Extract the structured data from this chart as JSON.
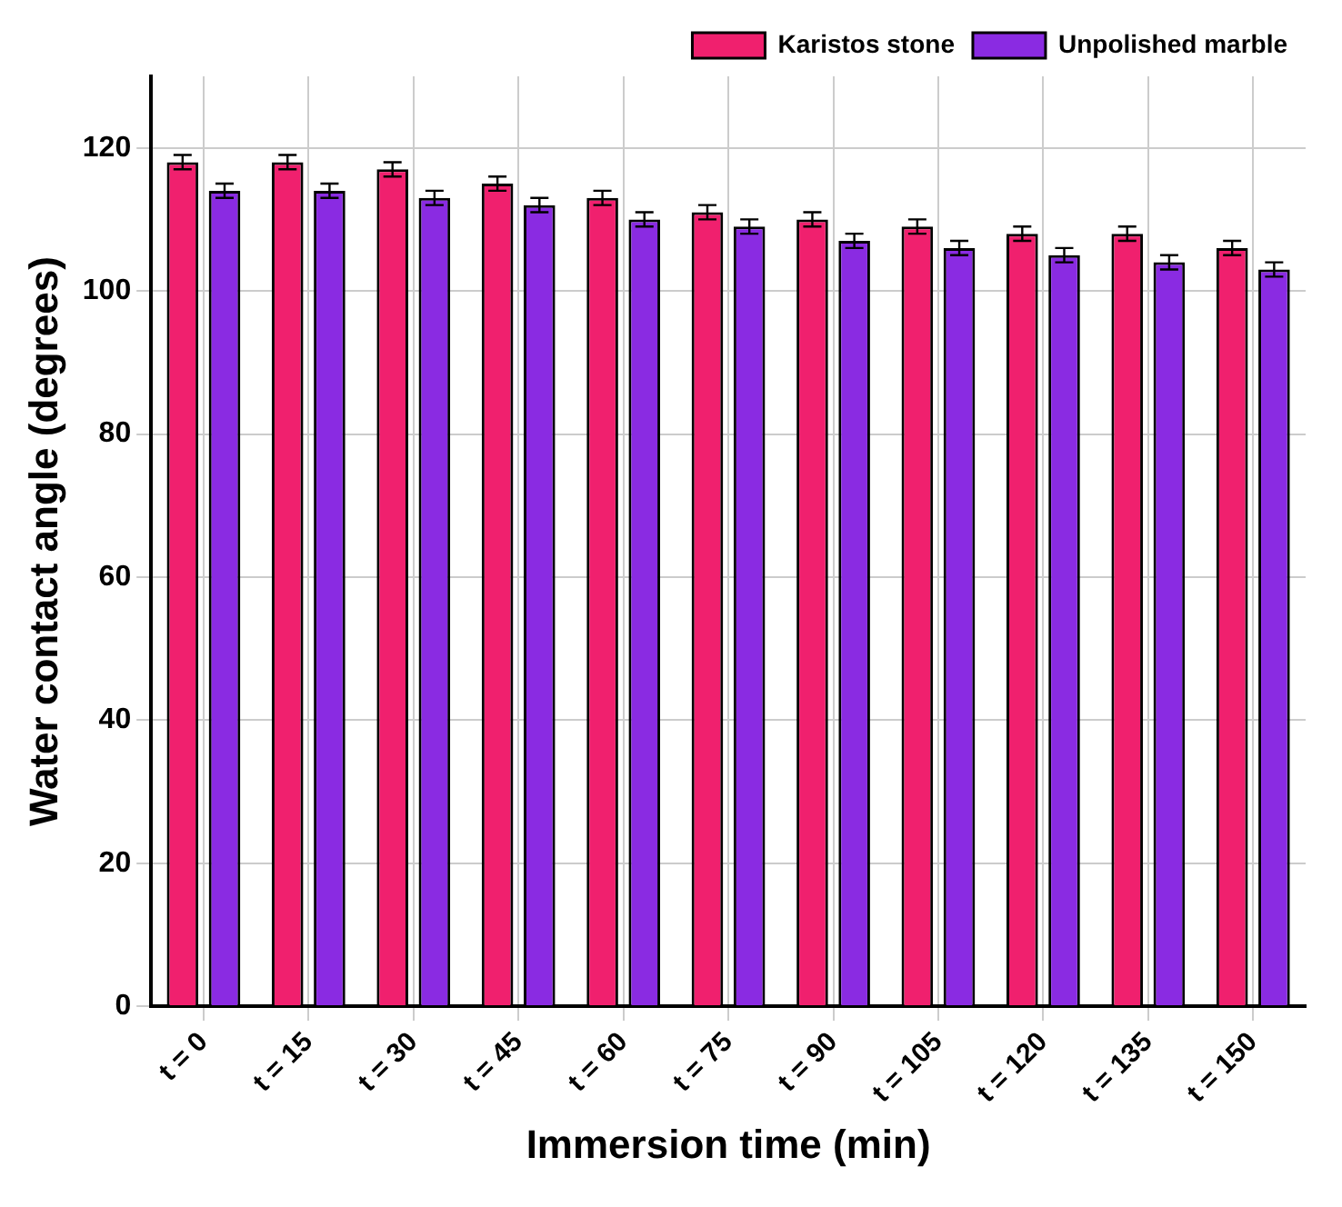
{
  "chart_data": {
    "type": "bar",
    "xlabel": "Immersion time (min)",
    "ylabel": "Water contact angle (degrees)",
    "categories": [
      "t = 0",
      "t = 15",
      "t = 30",
      "t = 45",
      "t = 60",
      "t = 75",
      "t = 90",
      "t = 105",
      "t = 120",
      "t = 135",
      "t = 150"
    ],
    "series": [
      {
        "name": "Karistos stone",
        "color": "#f0206e",
        "values": [
          118,
          118,
          117,
          115,
          113,
          111,
          110,
          109,
          108,
          108,
          106
        ],
        "errors": [
          1,
          1,
          1,
          1,
          1,
          1,
          1,
          1,
          1,
          1,
          1
        ]
      },
      {
        "name": "Unpolished marble",
        "color": "#8a2be2",
        "values": [
          114,
          114,
          113,
          112,
          110,
          109,
          107,
          106,
          105,
          104,
          103
        ],
        "errors": [
          1,
          1,
          1,
          1,
          1,
          1,
          1,
          1,
          1,
          1,
          1
        ]
      }
    ],
    "ylim": [
      0,
      130
    ],
    "yticks": [
      0,
      20,
      40,
      60,
      80,
      100,
      120
    ],
    "grid": true,
    "legend": "top right"
  }
}
